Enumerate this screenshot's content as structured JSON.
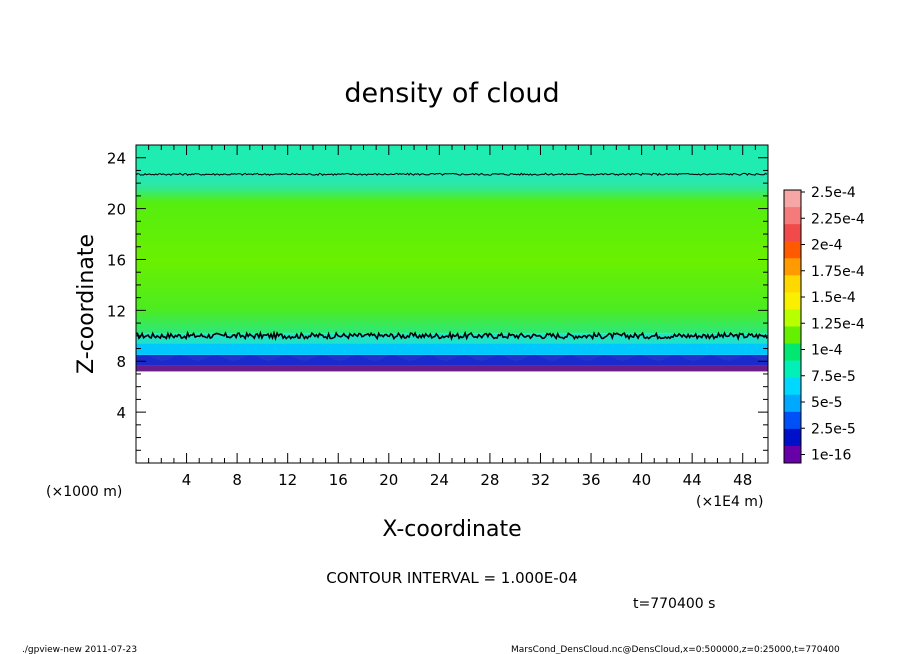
{
  "chart_data": {
    "type": "heatmap",
    "title": "density of cloud",
    "xlabel": "X-coordinate",
    "ylabel": "Z-coordinate",
    "x_unit": "(×1000 m)",
    "x_unit_right": "(×1E4 m)",
    "xlim": [
      0,
      50
    ],
    "ylim": [
      0,
      25
    ],
    "x_ticks": [
      4,
      8,
      12,
      16,
      20,
      24,
      28,
      32,
      36,
      40,
      44,
      48
    ],
    "y_ticks": [
      4,
      8,
      12,
      16,
      20,
      24
    ],
    "colorbar": {
      "labels": [
        "2.5e-4",
        "2.25e-4",
        "2e-4",
        "1.75e-4",
        "1.5e-4",
        "1.25e-4",
        "1e-4",
        "7.5e-5",
        "5e-5",
        "2.5e-5",
        "1e-16"
      ],
      "colors": [
        "#f7a6a6",
        "#f57a7a",
        "#f04a4a",
        "#ff5a00",
        "#ff9a00",
        "#ffd800",
        "#f8f000",
        "#b8ff00",
        "#64f000",
        "#00e870",
        "#00f0b8",
        "#00d8ff",
        "#00a8ff",
        "#0050f8",
        "#0010c8",
        "#6800a8"
      ]
    },
    "layers": [
      {
        "z_range": [
          0,
          7.2
        ],
        "value": "no data",
        "color": "#ffffff"
      },
      {
        "z_range": [
          7.2,
          7.7
        ],
        "value": "1e-16",
        "color": "#6a1e8a"
      },
      {
        "z_range": [
          7.7,
          8.5
        ],
        "value": "2.5e-5",
        "color": "#2233cc"
      },
      {
        "z_range": [
          8.5,
          9.4
        ],
        "value": "7.5e-5",
        "color": "#00c8ff"
      },
      {
        "z_range": [
          9.4,
          10.2
        ],
        "value": "1e-4",
        "color": "#1fe2c8"
      },
      {
        "z_range": [
          10.2,
          22.8
        ],
        "value": "1.5e-4",
        "color": "#66ee00"
      },
      {
        "z_range": [
          22.8,
          25
        ],
        "value": "1e-4",
        "color": "#1eecb0"
      }
    ],
    "contour_lines": [
      {
        "level": "1.000E-04",
        "z": 10.0
      },
      {
        "level": "1.000E-04",
        "z": 22.7
      }
    ]
  },
  "footer": {
    "contour_interval": "CONTOUR INTERVAL = 1.000E-04",
    "time": "t=770400 s",
    "left_note": "./gpview-new  2011-07-23",
    "right_note": "MarsCond_DensCloud.nc@DensCloud,x=0:500000,z=0:25000,t=770400"
  }
}
